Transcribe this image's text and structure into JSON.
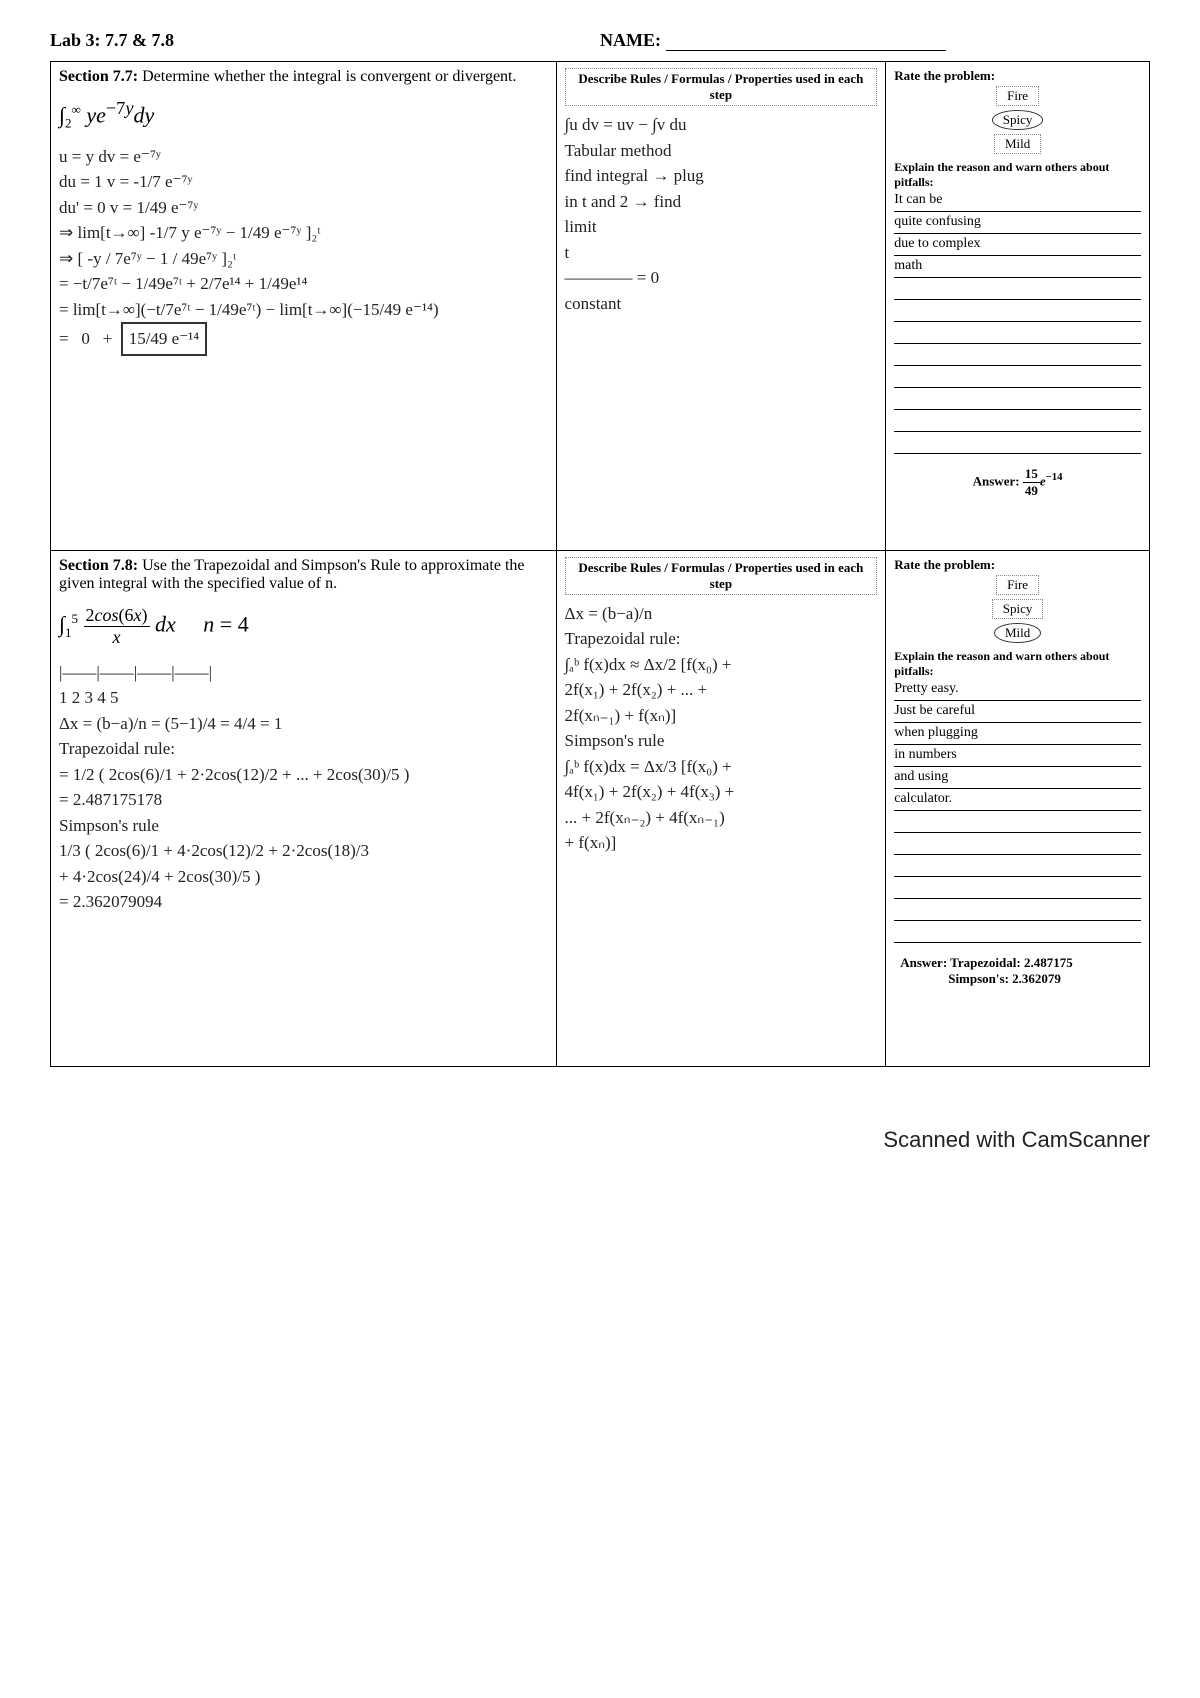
{
  "header": {
    "lab": "Lab 3: 7.7 & 7.8",
    "name_label": "NAME:"
  },
  "section1": {
    "title": "Section 7.7:",
    "prompt": " Determine whether the integral is convergent or divergent.",
    "integral_html": "∫<sub>2</sub><sup>∞</sup> ye<sup>−7y</sup> dy",
    "work_lines": [
      "u = y      dv = e⁻⁷ʸ",
      "du = 1     v = -1/7 e⁻⁷ʸ",
      "du' = 0    v = 1/49 e⁻⁷ʸ",
      "⇒ lim[t→∞]  -1/7 y e⁻⁷ʸ − 1/49 e⁻⁷ʸ ]₂ᵗ",
      "⇒ [ -y / 7e⁷ʸ  −  1 / 49e⁷ʸ ]₂ᵗ",
      "= −t/7e⁷ᵗ − 1/49e⁷ᵗ + 2/7e¹⁴ + 1/49e¹⁴",
      "= lim[t→∞](−t/7e⁷ᵗ − 1/49e⁷ᵗ) − lim[t→∞](−15/49 e⁻¹⁴)",
      "=   0   +  [ 15/49 e⁻¹⁴ ]"
    ],
    "rules_head": "Describe Rules / Formulas / Properties used in each step",
    "rules_lines": [
      "∫u dv = uv − ∫v du",
      "Tabular method",
      "find integral → plug",
      "in t and 2 → find",
      "limit",
      "    t    ",
      "———— = 0",
      "constant"
    ],
    "rate_head": "Rate the problem:",
    "ratings": [
      "Fire",
      "Spicy",
      "Mild"
    ],
    "circled_index": 1,
    "explain_head": "Explain the reason and warn others about pitfalls:",
    "explain_lines": [
      "It can be",
      "quite confusing",
      "due to complex",
      "math",
      "",
      "",
      "",
      "",
      "",
      "",
      "",
      ""
    ],
    "answer_label": "Answer: ",
    "answer": "15/49 e⁻¹⁴"
  },
  "section2": {
    "title": "Section 7.8:",
    "prompt": " Use the Trapezoidal and Simpson's Rule to approximate the given integral with the specified value of n.",
    "integral_html": "∫<sub>1</sub><sup>5</sup> (2cos(6x)/x) dx     n = 4",
    "work_lines": [
      "  |——|——|——|——|",
      "  1   2   3   4   5",
      "Δx = (b−a)/n = (5−1)/4 = 4/4 = 1",
      "Trapezoidal rule:",
      "= 1/2 ( 2cos(6)/1 + 2·2cos(12)/2 + ... + 2cos(30)/5 )",
      "= 2.487175178",
      "Simpson's rule",
      "1/3 ( 2cos(6)/1 + 4·2cos(12)/2 + 2·2cos(18)/3",
      "  + 4·2cos(24)/4 + 2cos(30)/5 )",
      "= 2.362079094"
    ],
    "rules_head": "Describe Rules / Formulas / Properties used in each step",
    "rules_lines": [
      "Δx = (b−a)/n",
      "Trapezoidal rule:",
      "∫ₐᵇ f(x)dx ≈ Δx/2 [f(x₀) +",
      "2f(x₁) + 2f(x₂) + ... +",
      "2f(xₙ₋₁) + f(xₙ)]",
      "Simpson's rule",
      "∫ₐᵇ f(x)dx = Δx/3 [f(x₀) +",
      "4f(x₁) + 2f(x₂) + 4f(x₃) +",
      "... + 2f(xₙ₋₂) + 4f(xₙ₋₁)",
      "+ f(xₙ)]"
    ],
    "rate_head": "Rate the problem:",
    "ratings": [
      "Fire",
      "Spicy",
      "Mild"
    ],
    "circled_index": 2,
    "explain_head": "Explain the reason and warn others about pitfalls:",
    "explain_lines": [
      "Pretty easy.",
      "Just be careful",
      "when plugging",
      "in numbers",
      "and using",
      "calculator.",
      "",
      "",
      "",
      "",
      "",
      ""
    ],
    "answer_label": "Answer: ",
    "answer_line1": "Trapezoidal: 2.487175",
    "answer_line2": "Simpson's: 2.362079"
  },
  "footer": "Scanned with CamScanner"
}
